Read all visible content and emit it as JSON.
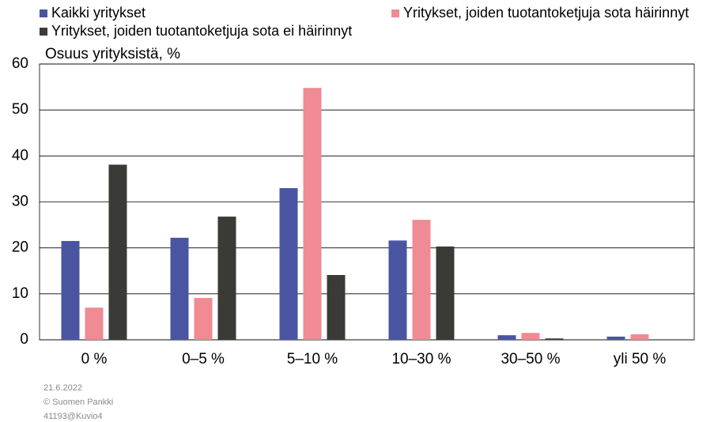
{
  "chart_data": {
    "type": "bar",
    "y_label": "Osuus yrityksistä, %",
    "categories": [
      "0 %",
      "0–5 %",
      "5–10 %",
      "10–30 %",
      "30–50 %",
      "yli 50 %"
    ],
    "series": [
      {
        "name": "Kaikki yritykset",
        "color": "#4a55a2",
        "values": [
          21.5,
          22.2,
          33.0,
          21.6,
          1.0,
          0.7
        ]
      },
      {
        "name": "Yritykset, joiden tuotantoketjuja sota häirinnyt",
        "color": "#f08a93",
        "values": [
          7.0,
          9.1,
          54.8,
          26.1,
          1.5,
          1.2
        ]
      },
      {
        "name": "Yritykset, joiden tuotantoketjuja sota ei häirinnyt",
        "color": "#3a3b36",
        "values": [
          38.1,
          26.8,
          14.1,
          20.3,
          0.3,
          0
        ]
      }
    ],
    "ylim": [
      0,
      60
    ],
    "yticks": [
      0,
      10,
      20,
      30,
      40,
      50,
      60
    ],
    "grid": true,
    "footer": [
      "21.6.2022",
      "© Suomen Pankki",
      "41193@Kuvio4"
    ]
  }
}
